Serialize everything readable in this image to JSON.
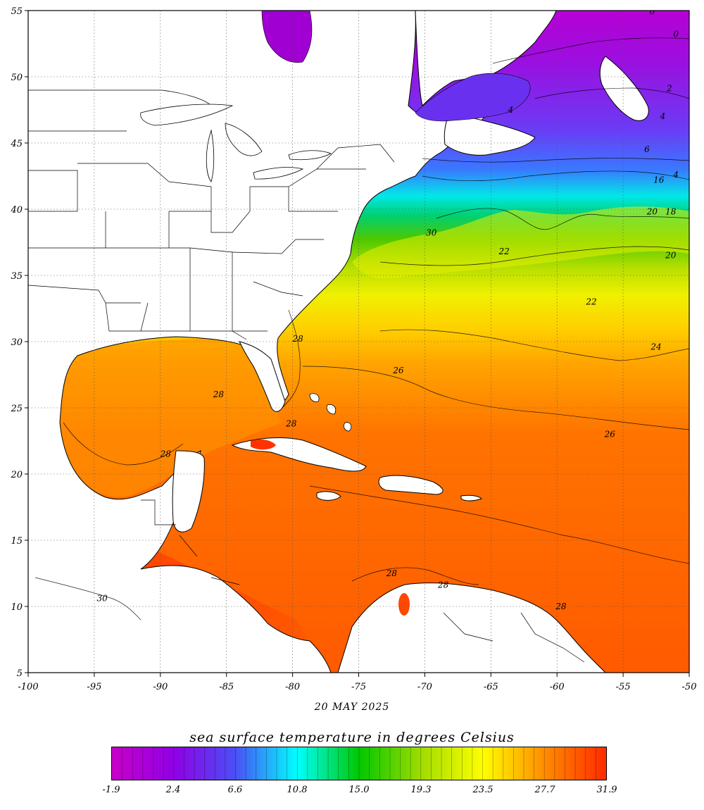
{
  "map": {
    "date_label": "20 MAY 2025",
    "legend_title": "sea surface temperature in degrees Celsius",
    "lon_ticks": [
      "-100",
      "-95",
      "-90",
      "-85",
      "-80",
      "-75",
      "-70",
      "-65",
      "-60",
      "-55",
      "-50"
    ],
    "lat_ticks": [
      "55",
      "50",
      "45",
      "40",
      "35",
      "30",
      "25",
      "20",
      "15",
      "10",
      "5"
    ],
    "legend_ticks": [
      "-1.9",
      "2.4",
      "6.6",
      "10.8",
      "15.0",
      "19.3",
      "23.5",
      "27.7",
      "31.9"
    ],
    "contour_labels": [
      {
        "text": "0",
        "lon": -52.8,
        "lat": 54.7
      },
      {
        "text": "0",
        "lon": -51.0,
        "lat": 53.0
      },
      {
        "text": "2",
        "lon": -51.5,
        "lat": 48.9
      },
      {
        "text": "4",
        "lon": -63.5,
        "lat": 47.3
      },
      {
        "text": "4",
        "lon": -52.0,
        "lat": 46.8
      },
      {
        "text": "6",
        "lon": -53.2,
        "lat": 44.3
      },
      {
        "text": "16",
        "lon": -52.3,
        "lat": 42.0
      },
      {
        "text": "4",
        "lon": -51.0,
        "lat": 42.4
      },
      {
        "text": "20",
        "lon": -52.8,
        "lat": 39.6
      },
      {
        "text": "18",
        "lon": -51.4,
        "lat": 39.6
      },
      {
        "text": "30",
        "lon": -69.5,
        "lat": 38.0
      },
      {
        "text": "22",
        "lon": -64.0,
        "lat": 36.6
      },
      {
        "text": "20",
        "lon": -51.4,
        "lat": 36.3
      },
      {
        "text": "22",
        "lon": -57.4,
        "lat": 32.8
      },
      {
        "text": "24",
        "lon": -52.5,
        "lat": 29.4
      },
      {
        "text": "28",
        "lon": -79.6,
        "lat": 30.0
      },
      {
        "text": "26",
        "lon": -72.0,
        "lat": 27.6
      },
      {
        "text": "26",
        "lon": -56.0,
        "lat": 22.8
      },
      {
        "text": "28",
        "lon": -85.6,
        "lat": 25.8
      },
      {
        "text": "28",
        "lon": -80.1,
        "lat": 23.6
      },
      {
        "text": "28",
        "lon": -89.6,
        "lat": 21.3
      },
      {
        "text": "28",
        "lon": -72.5,
        "lat": 12.3
      },
      {
        "text": "28",
        "lon": -68.6,
        "lat": 11.4
      },
      {
        "text": "28",
        "lon": -59.7,
        "lat": 9.8
      },
      {
        "text": "30",
        "lon": -94.4,
        "lat": 10.4
      }
    ],
    "colors": {
      "land": "#ffffff",
      "coast": "#000000",
      "scale": [
        "#c000c0",
        "#9b00e6",
        "#5a3cf5",
        "#2d7dff",
        "#00ffff",
        "#00d2a0",
        "#00c800",
        "#7dd200",
        "#d2e600",
        "#ffff00",
        "#ffb400",
        "#ff7800",
        "#ff4000",
        "#ff2a00"
      ]
    }
  }
}
